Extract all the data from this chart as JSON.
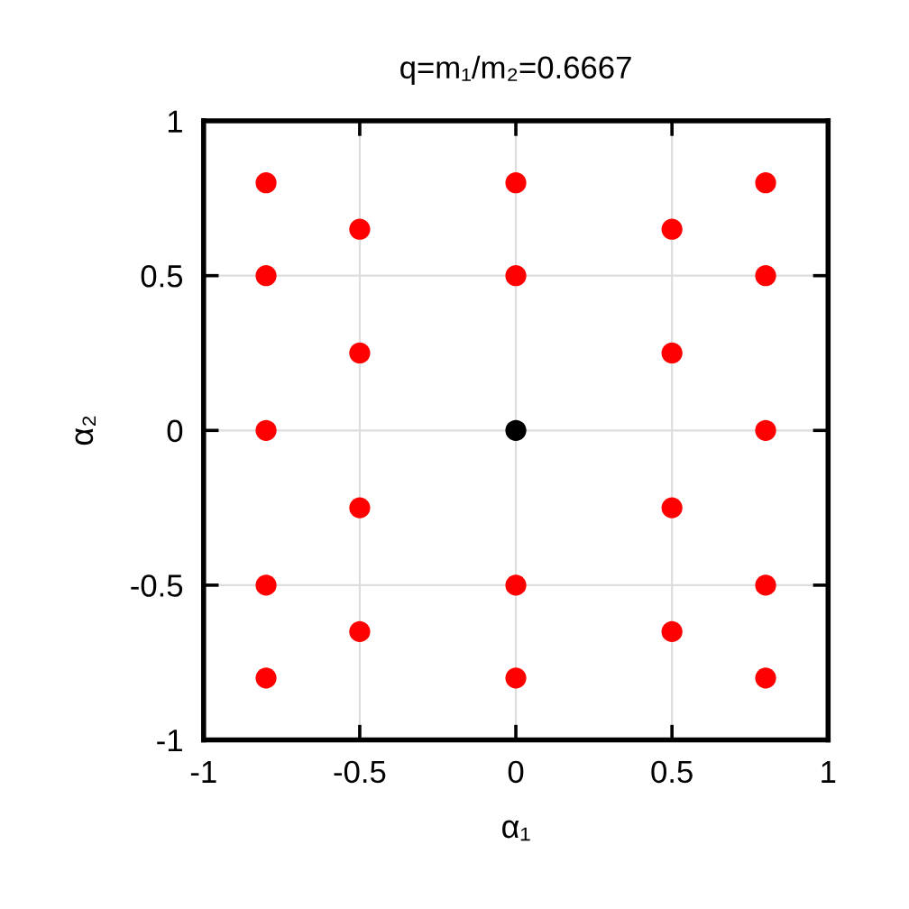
{
  "chart_data": {
    "type": "scatter",
    "title": "q=m₁/m₂=0.6667",
    "xlabel": "α₁",
    "ylabel": "α₂",
    "series": [
      {
        "color": "#ff0000",
        "x": [
          -0.8,
          -0.8,
          -0.8,
          -0.8,
          -0.8,
          -0.5,
          -0.5,
          -0.5,
          -0.5,
          0,
          0,
          0,
          0,
          0.5,
          0.5,
          0.5,
          0.5,
          0.8,
          0.8,
          0.8,
          0.8,
          0.8
        ],
        "values": [
          0.8,
          0.5,
          0,
          -0.5,
          -0.8,
          0.65,
          0.25,
          -0.25,
          -0.65,
          0.8,
          0.5,
          -0.5,
          -0.8,
          0.65,
          0.25,
          -0.25,
          -0.65,
          0.8,
          0.5,
          0,
          -0.5,
          -0.8
        ]
      },
      {
        "color": "#000000",
        "x": [
          0
        ],
        "values": [
          0
        ]
      }
    ],
    "xlim": [
      -1,
      1
    ],
    "ylim": [
      -1,
      1
    ],
    "xticks": [
      -1,
      -0.5,
      0,
      0.5,
      1
    ],
    "yticks": [
      -1,
      -0.5,
      0,
      0.5,
      1
    ],
    "grid": true,
    "marker": "circle"
  }
}
